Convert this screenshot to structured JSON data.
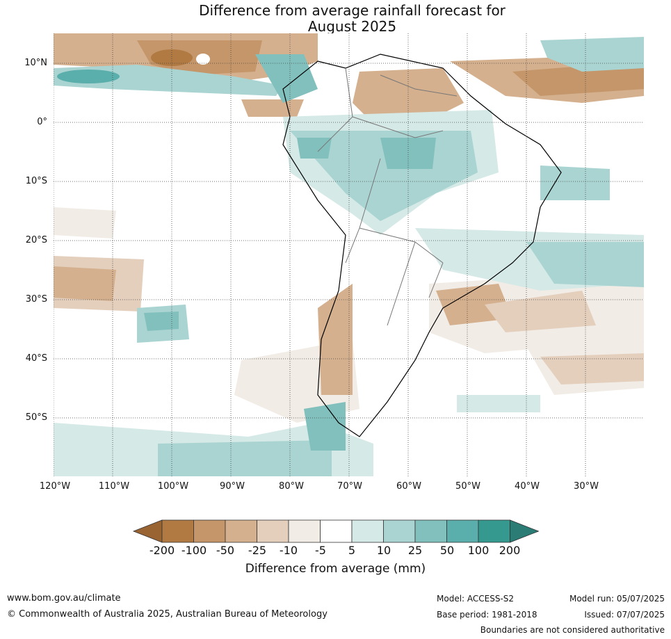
{
  "title": {
    "line1": "Difference from average rainfall forecast for",
    "line2": "August 2025"
  },
  "map": {
    "lat_labels": [
      "10°N",
      "0°",
      "10°S",
      "20°S",
      "30°S",
      "40°S",
      "50°S"
    ],
    "lon_labels": [
      "120°W",
      "110°W",
      "100°W",
      "90°W",
      "80°W",
      "70°W",
      "60°W",
      "50°W",
      "40°W",
      "30°W"
    ]
  },
  "legend": {
    "ticks": [
      "-200",
      "-100",
      "-50",
      "-25",
      "-10",
      "-5",
      "5",
      "10",
      "25",
      "50",
      "100",
      "200"
    ],
    "colors": [
      "#9a6432",
      "#b07a42",
      "#c49669",
      "#d4b08e",
      "#e4cfbd",
      "#f2ece6",
      "#ffffff",
      "#d5e9e7",
      "#aad4d2",
      "#82c0bd",
      "#5aaeab",
      "#35998f",
      "#2a7c74"
    ],
    "label": "Difference from average (mm)"
  },
  "footer": {
    "website": "www.bom.gov.au/climate",
    "copyright": "© Commonwealth of Australia 2025, Australian Bureau of Meteorology",
    "model": "Model: ACCESS-S2",
    "base_period": "Base period: 1981-2018",
    "model_run": "Model run: 05/07/2025",
    "issued": "Issued: 07/07/2025",
    "disclaimer": "Boundaries are not considered authoritative"
  }
}
